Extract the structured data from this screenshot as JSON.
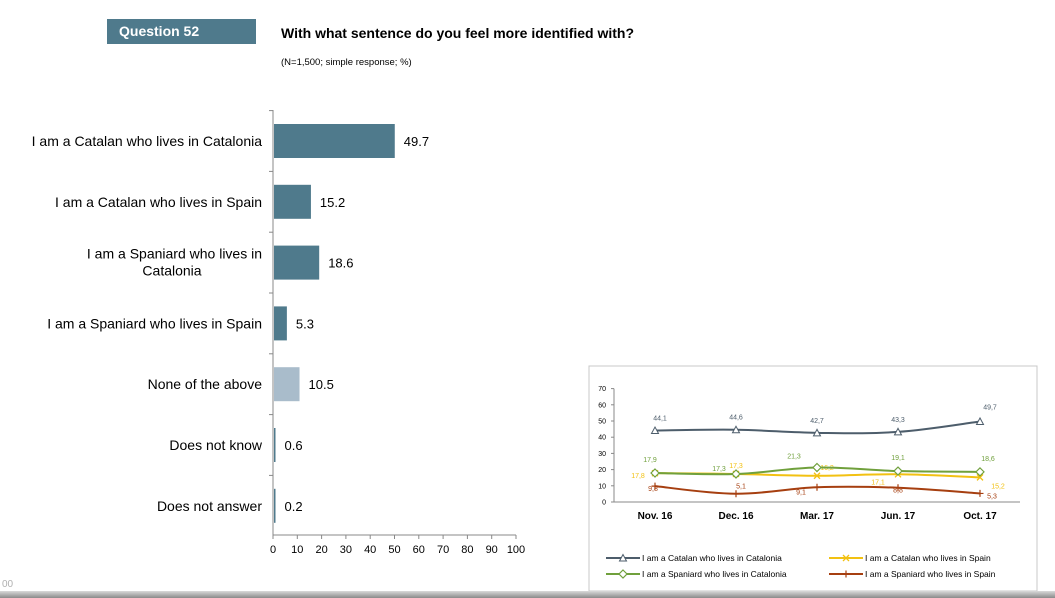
{
  "header": {
    "badge": "Question 52",
    "title": "With what sentence do you feel more identified with?",
    "subtitle": "(N=1,500; simple response; %)"
  },
  "footer": {
    "page": "00"
  },
  "colors": {
    "bar_primary": "#4f7a8c",
    "bar_secondary": "#a9bccb",
    "badge_bg": "#4f7a8c",
    "series": [
      "#4d5d6b",
      "#f2c112",
      "#70a03c",
      "#a63f10"
    ]
  },
  "chart_data": [
    {
      "type": "bar",
      "orientation": "horizontal",
      "categories": [
        "I am a Catalan who lives in Catalonia",
        "I am a Catalan who lives in Spain",
        "I am a Spaniard who lives in Catalonia",
        "I am a Spaniard who lives in Spain",
        "None of the above",
        "Does not know",
        "Does not answer"
      ],
      "label_lines": [
        [
          "I am a Catalan who lives in Catalonia"
        ],
        [
          "I am a Catalan who lives in Spain"
        ],
        [
          "I am a Spaniard who lives in",
          "Catalonia"
        ],
        [
          "I am a Spaniard who lives in Spain"
        ],
        [
          "None of the above"
        ],
        [
          "Does not know"
        ],
        [
          "Does not answer"
        ]
      ],
      "values": [
        49.7,
        15.2,
        18.6,
        5.3,
        10.5,
        0.6,
        0.2
      ],
      "value_labels": [
        "49.7",
        "15.2",
        "18.6",
        "5.3",
        "10.5",
        "0.6",
        "0.2"
      ],
      "shade": [
        "primary",
        "primary",
        "primary",
        "primary",
        "secondary",
        "primary",
        "primary"
      ],
      "xlim": [
        0,
        100
      ],
      "xticks": [
        0,
        10,
        20,
        30,
        40,
        50,
        60,
        70,
        80,
        90,
        100
      ]
    },
    {
      "type": "line",
      "categories": [
        "Nov. 16",
        "Dec. 16",
        "Mar. 17",
        "Jun. 17",
        "Oct. 17"
      ],
      "ylim": [
        0,
        70
      ],
      "yticks": [
        0,
        10,
        20,
        30,
        40,
        50,
        60,
        70
      ],
      "series": [
        {
          "name": "I am a Catalan who lives in Catalonia",
          "values": [
            44.1,
            44.6,
            42.7,
            43.3,
            49.7
          ],
          "labels": [
            "44,1",
            "44,6",
            "42,7",
            "43,3",
            "49,7"
          ],
          "marker": "triangle"
        },
        {
          "name": "I am a Catalan who lives in Spain",
          "values": [
            17.8,
            17.3,
            16.2,
            17.1,
            15.2
          ],
          "labels": [
            "17,8",
            "17,3",
            "16,2",
            "17,1",
            "15,2"
          ],
          "marker": "x"
        },
        {
          "name": "I am a Spaniard who lives in Catalonia",
          "values": [
            17.9,
            17.3,
            21.3,
            19.1,
            18.6
          ],
          "labels": [
            "17,9",
            "17,3",
            "21,3",
            "19,1",
            "18,6"
          ],
          "marker": "diamond"
        },
        {
          "name": "I am a Spaniard who lives in Spain",
          "values": [
            9.8,
            5.1,
            9.1,
            8.8,
            5.3
          ],
          "labels": [
            "9,8",
            "5,1",
            "9,1",
            "8,8",
            "5,3"
          ],
          "marker": "plus"
        }
      ]
    }
  ]
}
